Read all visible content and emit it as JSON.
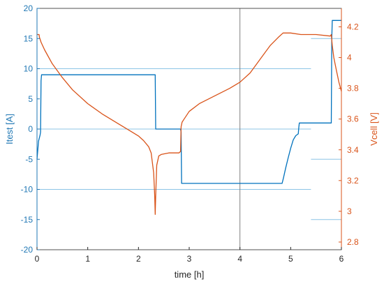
{
  "colors": {
    "left_axis": "#1f77b4",
    "right_axis": "#d95319",
    "current_line": "#0072bd",
    "voltage_line": "#d95319",
    "ref_line": "#8cc4e6",
    "marker_line": "#808080",
    "frame": "#262626"
  },
  "chart_data": {
    "type": "line",
    "xlabel": "time [h]",
    "ylabel_left": "Itest [A]",
    "ylabel_right": "Vcell [V]",
    "xlim": [
      0,
      6
    ],
    "ylim_left": [
      -20,
      20
    ],
    "ylim_right": [
      2.75,
      4.32
    ],
    "x_ticks": [
      0,
      1,
      2,
      3,
      4,
      5,
      6
    ],
    "y_left_ticks": [
      -20,
      -15,
      -10,
      -5,
      0,
      5,
      10,
      15,
      20
    ],
    "y_right_ticks": [
      2.8,
      3,
      3.2,
      3.4,
      3.6,
      3.8,
      4,
      4.2
    ],
    "y_right_tick_labels": [
      "2.8",
      "3",
      "3.2",
      "3.4",
      "3.6",
      "3.8",
      "4",
      "4.2"
    ],
    "grid": false,
    "series": [
      {
        "name": "Itest",
        "axis": "left",
        "x": [
          0,
          0.03,
          0.06,
          0.07,
          0.08,
          0.09,
          2.33,
          2.34,
          2.83,
          2.84,
          2.85,
          4.83,
          4.84,
          4.86,
          4.9,
          4.95,
          5.0,
          5.05,
          5.1,
          5.15,
          5.16,
          5.17,
          5.8,
          5.81,
          5.82,
          6.0
        ],
        "y": [
          -5,
          -2,
          -1,
          -0.5,
          8,
          9,
          9,
          0,
          0,
          -0.5,
          -9,
          -9,
          -8.7,
          -8,
          -6.5,
          -4.8,
          -3.2,
          -1.8,
          -1.1,
          -0.8,
          0.3,
          1,
          1,
          15,
          18,
          18
        ]
      },
      {
        "name": "Vcell",
        "axis": "right",
        "x": [
          0,
          0.04,
          0.05,
          0.06,
          0.08,
          0.15,
          0.3,
          0.5,
          0.7,
          1.0,
          1.3,
          1.6,
          1.8,
          2.0,
          2.1,
          2.2,
          2.25,
          2.3,
          2.32,
          2.33,
          2.34,
          2.36,
          2.4,
          2.45,
          2.6,
          2.8,
          2.83,
          2.84,
          2.86,
          2.9,
          3.0,
          3.2,
          3.5,
          3.8,
          4.0,
          4.2,
          4.4,
          4.6,
          4.75,
          4.85,
          4.88,
          5.0,
          5.2,
          5.5,
          5.78,
          5.8,
          5.82,
          5.85,
          5.9,
          5.95,
          6.0
        ],
        "y": [
          4.15,
          4.15,
          4.13,
          4.12,
          4.1,
          4.05,
          3.96,
          3.87,
          3.79,
          3.7,
          3.63,
          3.57,
          3.53,
          3.49,
          3.46,
          3.42,
          3.38,
          3.25,
          3.1,
          2.98,
          3.1,
          3.3,
          3.36,
          3.37,
          3.38,
          3.38,
          3.39,
          3.55,
          3.58,
          3.6,
          3.65,
          3.7,
          3.75,
          3.8,
          3.84,
          3.9,
          3.99,
          4.08,
          4.13,
          4.16,
          4.16,
          4.16,
          4.15,
          4.15,
          4.14,
          4.15,
          4.08,
          4.0,
          3.92,
          3.84,
          3.78
        ]
      }
    ],
    "reference_lines": [
      {
        "axis": "left",
        "y": 10,
        "x_start": 0,
        "x_end": 5.4
      },
      {
        "axis": "left",
        "y": 0,
        "x_start": 0,
        "x_end": 5.4
      },
      {
        "axis": "left",
        "y": -10,
        "x_start": 0,
        "x_end": 5.4
      },
      {
        "axis": "left",
        "y": 15,
        "x_start": 5.4,
        "x_end": 6.0
      },
      {
        "axis": "left",
        "y": -5,
        "x_start": 5.4,
        "x_end": 6.0
      },
      {
        "axis": "left",
        "y": -15,
        "x_start": 5.4,
        "x_end": 6.0
      }
    ],
    "vertical_marker_x": 4
  }
}
